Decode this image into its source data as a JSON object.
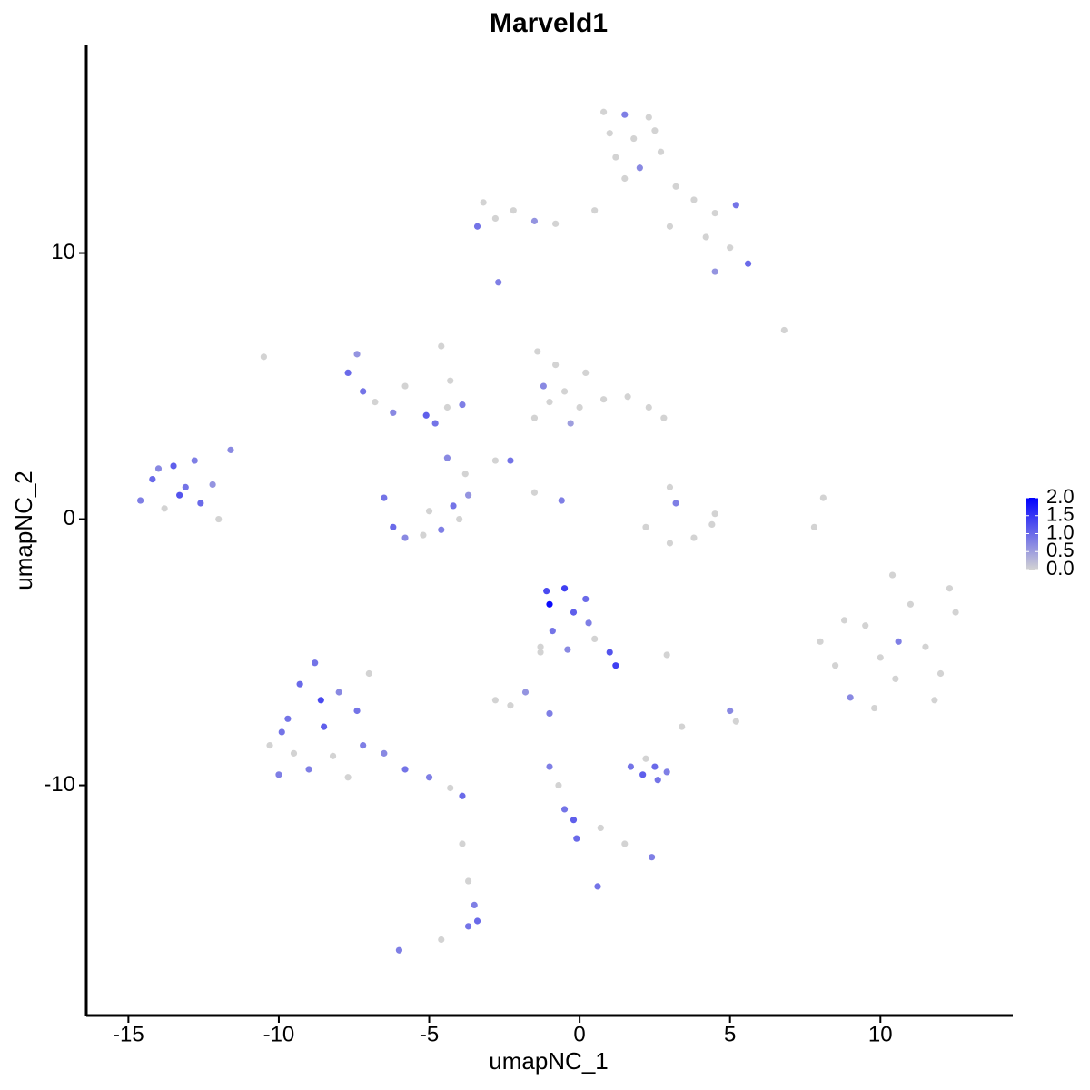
{
  "chart_data": {
    "type": "scatter",
    "title": "Marveld1",
    "x_label": "umapNC_1",
    "y_label": "umapNC_2",
    "x": [
      0.8,
      1.5,
      2.3,
      1.0,
      1.8,
      2.5,
      1.2,
      2.0,
      2.7,
      1.5,
      3.2,
      3.8,
      4.5,
      5.2,
      4.2,
      5.0,
      5.6,
      4.5,
      3.0,
      0.5,
      -3.2,
      -2.8,
      -2.2,
      -1.5,
      -0.8,
      -3.4,
      -2.7,
      -1.4,
      -0.8,
      -1.2,
      -0.5,
      0,
      -1.5,
      0.8,
      1.6,
      2.3,
      2.8,
      0.2,
      -0.3,
      -1.0,
      -7.7,
      -7.4,
      -7.2,
      -6.8,
      -6.2,
      -5.8,
      -5.1,
      -4.8,
      -4.4,
      -3.9,
      -4.6,
      -4.3,
      -10.5,
      -14.6,
      -14.2,
      -13.8,
      -13.5,
      -13.1,
      -12.8,
      -12.6,
      -12.2,
      -12.0,
      -14.0,
      -13.3,
      -11.6,
      -6.5,
      -6.2,
      -5.8,
      -5.2,
      -4.6,
      -4.0,
      -3.7,
      -3.8,
      -5.0,
      -4.4,
      -4.2,
      3.0,
      3.2,
      2.2,
      3.0,
      3.8,
      4.4,
      4.5,
      8.1,
      7.8,
      8.0,
      8.5,
      9.0,
      9.5,
      10,
      10.5,
      11,
      11.5,
      12,
      12.5,
      10.4,
      11.8,
      9.8,
      10.6,
      12.3,
      8.8,
      -1.1,
      -1.0,
      -0.5,
      -0.2,
      0.3,
      -0.9,
      0.5,
      1.0,
      1.2,
      -0.4,
      0.2,
      -1.3,
      -10.3,
      -10,
      -9.7,
      -9.5,
      -9.3,
      -9.0,
      -8.8,
      -8.5,
      -8.2,
      -8.0,
      -7.7,
      -7.4,
      -7.2,
      -7.0,
      -6.5,
      -5.8,
      -5.0,
      -4.3,
      -3.9,
      -9.9,
      -8.6,
      1.7,
      2.1,
      2.5,
      2.9,
      2.2,
      2.6,
      -1.0,
      -0.7,
      -0.5,
      -0.2,
      -0.1,
      0.7,
      1.5,
      2.4,
      0.6,
      -3.7,
      -3.5,
      -3.4,
      -3.7,
      -6.0,
      -4.6,
      -3.9,
      -2.8,
      -2.3,
      -1.8,
      -1.3,
      -1.0,
      5.0,
      5.2,
      3.4,
      2.9,
      6.8,
      -2.3,
      -1.5,
      -0.6,
      -2.8
    ],
    "y": [
      15.3,
      15.2,
      15.1,
      14.5,
      14.3,
      14.6,
      13.6,
      13.2,
      13.8,
      12.8,
      12.5,
      12.0,
      11.5,
      11.8,
      10.6,
      10.2,
      9.6,
      9.3,
      11.0,
      11.6,
      11.9,
      11.3,
      11.6,
      11.2,
      11.1,
      11.0,
      8.9,
      6.3,
      5.8,
      5.0,
      4.8,
      4.2,
      3.8,
      4.5,
      4.6,
      4.2,
      3.8,
      5.5,
      3.6,
      4.4,
      5.5,
      6.2,
      4.8,
      4.4,
      4.0,
      5.0,
      3.9,
      3.6,
      4.2,
      4.3,
      6.5,
      5.2,
      6.1,
      0.7,
      1.5,
      0.4,
      2.0,
      1.2,
      2.2,
      0.6,
      1.3,
      0,
      1.9,
      0.9,
      2.6,
      0.8,
      -0.3,
      -0.7,
      -0.6,
      -0.4,
      0,
      0.9,
      1.7,
      0.3,
      2.3,
      0.5,
      1.2,
      0.6,
      -0.3,
      -0.9,
      -0.7,
      -0.2,
      0.2,
      0.8,
      -0.3,
      -4.6,
      -5.5,
      -6.7,
      -4.0,
      -5.2,
      -6.0,
      -3.2,
      -4.8,
      -5.8,
      -3.5,
      -2.1,
      -6.8,
      -7.1,
      -4.6,
      -2.6,
      -3.8,
      -2.7,
      -3.2,
      -2.6,
      -3.5,
      -3.9,
      -4.2,
      -4.5,
      -5.0,
      -5.5,
      -4.9,
      -3.0,
      -4.8,
      -8.5,
      -9.6,
      -7.5,
      -8.8,
      -6.2,
      -9.4,
      -5.4,
      -7.8,
      -8.9,
      -6.5,
      -9.7,
      -7.2,
      -8.5,
      -5.8,
      -8.8,
      -9.4,
      -9.7,
      -10.1,
      -10.4,
      -8.0,
      -6.8,
      -9.3,
      -9.6,
      -9.3,
      -9.5,
      -9.0,
      -9.8,
      -9.3,
      -10.0,
      -10.9,
      -11.3,
      -12.0,
      -11.6,
      -12.2,
      -12.7,
      -13.8,
      -13.6,
      -14.5,
      -15.1,
      -15.3,
      -16.2,
      -15.8,
      -12.2,
      -6.8,
      -7.0,
      -6.5,
      -5.0,
      -7.3,
      -7.2,
      -7.6,
      -7.8,
      -5.1,
      7.1,
      2.2,
      1.0,
      0.7,
      2.2
    ],
    "values": [
      0,
      0.8,
      0,
      0,
      0,
      0,
      0,
      0.7,
      0,
      0,
      0,
      0,
      0,
      0.9,
      0,
      0,
      1.0,
      0.6,
      0,
      0,
      0,
      0,
      0,
      0.6,
      0,
      0.9,
      0.8,
      0,
      0,
      0.7,
      0,
      0,
      0,
      0,
      0,
      0,
      0,
      0,
      0.5,
      0,
      1.0,
      0.6,
      0.9,
      0,
      0.7,
      0,
      1.1,
      0.9,
      0,
      0.8,
      0,
      0,
      0,
      0.8,
      1.0,
      0,
      1.1,
      0.9,
      0.8,
      1.0,
      0.6,
      0,
      0.7,
      1.2,
      0.7,
      0.9,
      1.0,
      0.7,
      0,
      0.8,
      0,
      0.6,
      0,
      0,
      0.7,
      0.9,
      0,
      0.8,
      0,
      0,
      0,
      0,
      0,
      0,
      0,
      0,
      0,
      0.7,
      0,
      0,
      0,
      0,
      0,
      0,
      0,
      0,
      0,
      0,
      0.8,
      0,
      0,
      1.3,
      1.9,
      1.4,
      1.1,
      0.8,
      0.9,
      0,
      1.2,
      1.4,
      0.7,
      1.0,
      0,
      0,
      0.8,
      0.9,
      0,
      1.0,
      0.8,
      0.9,
      1.1,
      0,
      0.7,
      0,
      0.9,
      0.8,
      0,
      0.7,
      0.9,
      0.8,
      0,
      1.0,
      0.9,
      1.3,
      0.9,
      1.1,
      1.0,
      0.8,
      0,
      0.9,
      0.8,
      0,
      0.9,
      1.1,
      1.0,
      0,
      0,
      0.8,
      0.9,
      0,
      0.8,
      1.0,
      0.9,
      0.8,
      0,
      0,
      0,
      0,
      0.6,
      0,
      0.8,
      0.7,
      0,
      0,
      0,
      0,
      0.9,
      0,
      0.8,
      0
    ],
    "xlim": [
      -16.4,
      14.4
    ],
    "ylim": [
      -18.65,
      17.8
    ],
    "xticks": [
      -15,
      -10,
      -5,
      0,
      5,
      10
    ],
    "yticks": [
      -10,
      0,
      10
    ],
    "colorbar": {
      "lim": [
        0,
        2
      ],
      "low_color": "#d3d3d3",
      "high_color": "#0000ff",
      "ticks": [
        {
          "value": 0,
          "label": "0.0"
        },
        {
          "value": 0.5,
          "label": "0.5"
        },
        {
          "value": 1,
          "label": "1.0"
        },
        {
          "value": 1.5,
          "label": "1.5"
        },
        {
          "value": 2,
          "label": "2.0"
        }
      ]
    }
  }
}
